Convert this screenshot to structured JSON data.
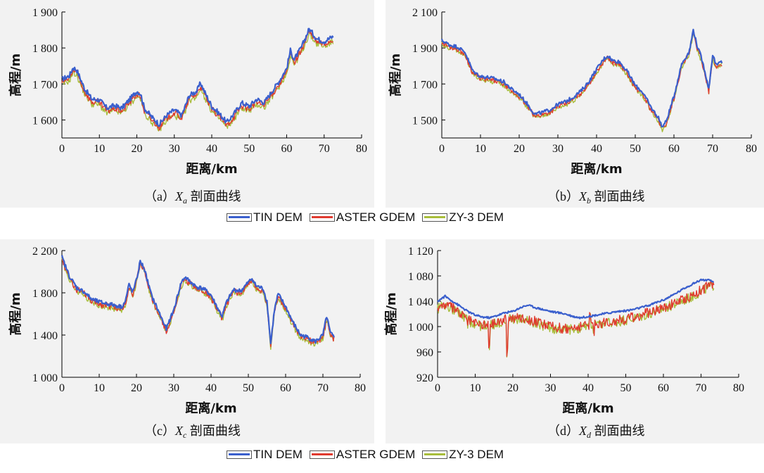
{
  "figure": {
    "legend": {
      "entries": [
        {
          "label": "TIN DEM",
          "color": "#3a5fcd"
        },
        {
          "label": "ASTER GDEM",
          "color": "#e03a2f"
        },
        {
          "label": "ZY-3 DEM",
          "color": "#a8bd3a"
        }
      ]
    },
    "captions": {
      "a": {
        "prefix": "（a）",
        "symbol": "X",
        "sub": "a",
        "suffix": "剖面曲线"
      },
      "b": {
        "prefix": "（b）",
        "symbol": "X",
        "sub": "b",
        "suffix": "剖面曲线"
      },
      "c": {
        "prefix": "（c）",
        "symbol": "X",
        "sub": "c",
        "suffix": "剖面曲线"
      },
      "d": {
        "prefix": "（d）",
        "symbol": "X",
        "sub": "d",
        "suffix": "剖面曲线"
      }
    }
  },
  "chart_data": [
    {
      "id": "a",
      "type": "line",
      "xlabel": "距离/km",
      "ylabel": "高程/m",
      "xlim": [
        0,
        80
      ],
      "ylim": [
        1550,
        1900
      ],
      "xticks": [
        0,
        10,
        20,
        30,
        40,
        50,
        60,
        70,
        80
      ],
      "xtick_labels": [
        "0",
        "10",
        "20",
        "30",
        "40",
        "50",
        "60",
        "70",
        "80"
      ],
      "yticks": [
        1600,
        1700,
        1800,
        1900
      ],
      "ytick_labels": [
        "1 600",
        "1 700",
        "1 800",
        "1 900"
      ],
      "x_end": 72.5,
      "base": [
        [
          0,
          1705
        ],
        [
          2,
          1715
        ],
        [
          3,
          1738
        ],
        [
          4,
          1730
        ],
        [
          6,
          1680
        ],
        [
          8,
          1650
        ],
        [
          10,
          1648
        ],
        [
          12,
          1625
        ],
        [
          14,
          1632
        ],
        [
          16,
          1625
        ],
        [
          18,
          1648
        ],
        [
          20,
          1672
        ],
        [
          21,
          1665
        ],
        [
          22,
          1625
        ],
        [
          24,
          1600
        ],
        [
          26,
          1580
        ],
        [
          28,
          1605
        ],
        [
          30,
          1620
        ],
        [
          32,
          1605
        ],
        [
          34,
          1660
        ],
        [
          36,
          1672
        ],
        [
          37,
          1695
        ],
        [
          38,
          1672
        ],
        [
          40,
          1630
        ],
        [
          42,
          1610
        ],
        [
          44,
          1585
        ],
        [
          46,
          1610
        ],
        [
          48,
          1640
        ],
        [
          50,
          1630
        ],
        [
          52,
          1650
        ],
        [
          54,
          1640
        ],
        [
          56,
          1670
        ],
        [
          58,
          1700
        ],
        [
          60,
          1735
        ],
        [
          61,
          1785
        ],
        [
          62,
          1760
        ],
        [
          64,
          1795
        ],
        [
          66,
          1845
        ],
        [
          68,
          1818
        ],
        [
          70,
          1810
        ],
        [
          72,
          1822
        ]
      ],
      "series": [
        {
          "name": "TIN DEM",
          "offset": 8,
          "noise": 7
        },
        {
          "name": "ASTER GDEM",
          "offset": 0,
          "noise": 9
        },
        {
          "name": "ZY-3 DEM",
          "offset": -6,
          "noise": 9
        }
      ]
    },
    {
      "id": "b",
      "type": "line",
      "xlabel": "距离/km",
      "ylabel": "高程/m",
      "xlim": [
        0,
        80
      ],
      "ylim": [
        1400,
        2100
      ],
      "xticks": [
        0,
        10,
        20,
        30,
        40,
        50,
        60,
        70,
        80
      ],
      "xtick_labels": [
        "0",
        "10",
        "20",
        "30",
        "40",
        "50",
        "60",
        "70",
        "80"
      ],
      "yticks": [
        1500,
        1700,
        1900,
        2100
      ],
      "ytick_labels": [
        "1 500",
        "1 700",
        "1 900",
        "2 100"
      ],
      "x_end": 72.5,
      "base": [
        [
          0,
          1930
        ],
        [
          2,
          1905
        ],
        [
          4,
          1895
        ],
        [
          6,
          1865
        ],
        [
          8,
          1760
        ],
        [
          10,
          1730
        ],
        [
          12,
          1725
        ],
        [
          14,
          1715
        ],
        [
          16,
          1700
        ],
        [
          18,
          1660
        ],
        [
          20,
          1630
        ],
        [
          22,
          1580
        ],
        [
          24,
          1520
        ],
        [
          26,
          1530
        ],
        [
          28,
          1545
        ],
        [
          30,
          1575
        ],
        [
          32,
          1590
        ],
        [
          34,
          1615
        ],
        [
          36,
          1650
        ],
        [
          38,
          1700
        ],
        [
          40,
          1770
        ],
        [
          42,
          1830
        ],
        [
          43,
          1845
        ],
        [
          44,
          1820
        ],
        [
          46,
          1810
        ],
        [
          48,
          1755
        ],
        [
          50,
          1680
        ],
        [
          52,
          1640
        ],
        [
          54,
          1560
        ],
        [
          56,
          1500
        ],
        [
          57,
          1450
        ],
        [
          58,
          1480
        ],
        [
          60,
          1620
        ],
        [
          62,
          1800
        ],
        [
          64,
          1870
        ],
        [
          65,
          1990
        ],
        [
          66,
          1900
        ],
        [
          67,
          1840
        ],
        [
          68,
          1760
        ],
        [
          69,
          1660
        ],
        [
          70,
          1850
        ],
        [
          71,
          1790
        ],
        [
          72,
          1810
        ]
      ],
      "series": [
        {
          "name": "TIN DEM",
          "offset": 12,
          "noise": 10
        },
        {
          "name": "ASTER GDEM",
          "offset": 0,
          "noise": 14
        },
        {
          "name": "ZY-3 DEM",
          "offset": -6,
          "noise": 14
        }
      ]
    },
    {
      "id": "c",
      "type": "line",
      "xlabel": "距离/km",
      "ylabel": "高程/m",
      "xlim": [
        0,
        80
      ],
      "ylim": [
        1000,
        2200
      ],
      "xticks": [
        0,
        10,
        20,
        30,
        40,
        50,
        60,
        70,
        80
      ],
      "xtick_labels": [
        "0",
        "10",
        "20",
        "30",
        "40",
        "50",
        "60",
        "70",
        "80"
      ],
      "yticks": [
        1000,
        1400,
        1800,
        2200
      ],
      "ytick_labels": [
        "1 000",
        "1 400",
        "1 800",
        "2 200"
      ],
      "x_end": 73,
      "base": [
        [
          0,
          2120
        ],
        [
          2,
          1940
        ],
        [
          4,
          1830
        ],
        [
          6,
          1790
        ],
        [
          8,
          1720
        ],
        [
          10,
          1695
        ],
        [
          12,
          1680
        ],
        [
          14,
          1665
        ],
        [
          16,
          1650
        ],
        [
          17,
          1700
        ],
        [
          18,
          1860
        ],
        [
          19,
          1790
        ],
        [
          20,
          1900
        ],
        [
          21,
          2080
        ],
        [
          22,
          2020
        ],
        [
          24,
          1760
        ],
        [
          26,
          1600
        ],
        [
          28,
          1440
        ],
        [
          30,
          1620
        ],
        [
          32,
          1880
        ],
        [
          33,
          1930
        ],
        [
          34,
          1900
        ],
        [
          36,
          1840
        ],
        [
          38,
          1820
        ],
        [
          40,
          1760
        ],
        [
          42,
          1620
        ],
        [
          43,
          1560
        ],
        [
          44,
          1680
        ],
        [
          46,
          1810
        ],
        [
          48,
          1800
        ],
        [
          50,
          1880
        ],
        [
          51,
          1920
        ],
        [
          52,
          1850
        ],
        [
          54,
          1820
        ],
        [
          55,
          1700
        ],
        [
          56,
          1300
        ],
        [
          57,
          1620
        ],
        [
          58,
          1770
        ],
        [
          60,
          1650
        ],
        [
          62,
          1500
        ],
        [
          64,
          1380
        ],
        [
          66,
          1360
        ],
        [
          68,
          1320
        ],
        [
          70,
          1380
        ],
        [
          71,
          1560
        ],
        [
          72,
          1400
        ],
        [
          73,
          1360
        ]
      ],
      "series": [
        {
          "name": "TIN DEM",
          "offset": 18,
          "noise": 20
        },
        {
          "name": "ASTER GDEM",
          "offset": 0,
          "noise": 30
        },
        {
          "name": "ZY-3 DEM",
          "offset": -12,
          "noise": 30
        }
      ]
    },
    {
      "id": "d",
      "type": "line",
      "xlabel": "距离/km",
      "ylabel": "高程/m",
      "xlim": [
        0,
        80
      ],
      "ylim": [
        920,
        1120
      ],
      "xticks": [
        0,
        10,
        20,
        30,
        40,
        50,
        60,
        70,
        80
      ],
      "xtick_labels": [
        "0",
        "10",
        "20",
        "30",
        "40",
        "50",
        "60",
        "70",
        "80"
      ],
      "yticks": [
        920,
        960,
        1000,
        1040,
        1080,
        1120
      ],
      "ytick_labels": [
        "920",
        "960",
        "1 000",
        "1 040",
        "1 080",
        "1 120"
      ],
      "x_end": 73.5,
      "tin_base": [
        [
          0,
          1040
        ],
        [
          2,
          1048
        ],
        [
          4,
          1040
        ],
        [
          6,
          1032
        ],
        [
          8,
          1024
        ],
        [
          10,
          1018
        ],
        [
          12,
          1015
        ],
        [
          14,
          1014
        ],
        [
          16,
          1018
        ],
        [
          18,
          1022
        ],
        [
          20,
          1024
        ],
        [
          22,
          1030
        ],
        [
          24,
          1034
        ],
        [
          26,
          1030
        ],
        [
          28,
          1027
        ],
        [
          30,
          1024
        ],
        [
          32,
          1022
        ],
        [
          34,
          1020
        ],
        [
          36,
          1016
        ],
        [
          38,
          1014
        ],
        [
          40,
          1016
        ],
        [
          42,
          1018
        ],
        [
          44,
          1020
        ],
        [
          46,
          1022
        ],
        [
          48,
          1024
        ],
        [
          50,
          1025
        ],
        [
          52,
          1027
        ],
        [
          54,
          1030
        ],
        [
          56,
          1033
        ],
        [
          58,
          1038
        ],
        [
          60,
          1042
        ],
        [
          62,
          1048
        ],
        [
          64,
          1055
        ],
        [
          66,
          1062
        ],
        [
          68,
          1068
        ],
        [
          70,
          1074
        ],
        [
          72,
          1073
        ],
        [
          73.5,
          1070
        ]
      ],
      "other_base": [
        [
          0,
          1030
        ],
        [
          2,
          1035
        ],
        [
          4,
          1030
        ],
        [
          6,
          1020
        ],
        [
          8,
          1012
        ],
        [
          10,
          1005
        ],
        [
          12,
          1003
        ],
        [
          14,
          1004
        ],
        [
          16,
          1008
        ],
        [
          18,
          1012
        ],
        [
          20,
          1014
        ],
        [
          22,
          1015
        ],
        [
          24,
          1012
        ],
        [
          26,
          1008
        ],
        [
          28,
          1004
        ],
        [
          30,
          1001
        ],
        [
          32,
          998
        ],
        [
          34,
          997
        ],
        [
          36,
          998
        ],
        [
          38,
          1000
        ],
        [
          40,
          1003
        ],
        [
          42,
          1005
        ],
        [
          44,
          1006
        ],
        [
          46,
          1008
        ],
        [
          48,
          1010
        ],
        [
          50,
          1012
        ],
        [
          52,
          1015
        ],
        [
          54,
          1018
        ],
        [
          56,
          1022
        ],
        [
          58,
          1026
        ],
        [
          60,
          1030
        ],
        [
          62,
          1035
        ],
        [
          64,
          1040
        ],
        [
          66,
          1045
        ],
        [
          68,
          1050
        ],
        [
          70,
          1058
        ],
        [
          72,
          1064
        ],
        [
          73.5,
          1068
        ]
      ],
      "spikes": [
        [
          8,
          1000
        ],
        [
          13.7,
          966
        ],
        [
          18.5,
          958
        ],
        [
          31,
          995
        ],
        [
          33,
          993
        ],
        [
          40.5,
          1022
        ],
        [
          41.5,
          992
        ]
      ],
      "series": [
        {
          "name": "TIN DEM",
          "offset": 0,
          "noise": 1.5
        },
        {
          "name": "ASTER GDEM",
          "offset": 0,
          "noise": 8
        },
        {
          "name": "ZY-3 DEM",
          "offset": -2,
          "noise": 8
        }
      ]
    }
  ]
}
